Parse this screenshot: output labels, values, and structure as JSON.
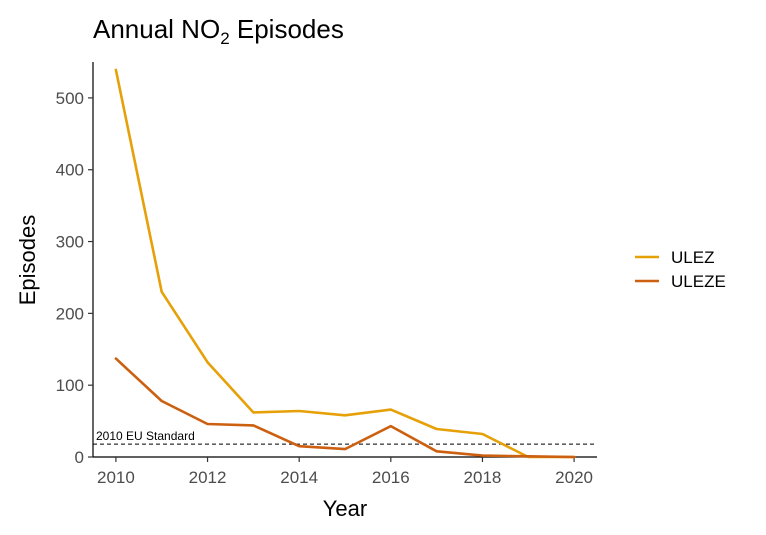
{
  "chart_data": {
    "type": "line",
    "title": "Annual NO",
    "title_subscript": "2",
    "title_suffix": " Episodes",
    "xlabel": "Year",
    "ylabel": "Episodes",
    "xlim": [
      2009.5,
      2020.5
    ],
    "ylim": [
      0,
      550
    ],
    "x_ticks": [
      2010,
      2012,
      2014,
      2016,
      2018,
      2020
    ],
    "y_ticks": [
      0,
      100,
      200,
      300,
      400,
      500
    ],
    "grid": false,
    "legend_position": "right",
    "series": [
      {
        "name": "ULEZ",
        "color": "#E6A008",
        "x": [
          2010,
          2011,
          2012,
          2013,
          2014,
          2015,
          2016,
          2017,
          2018,
          2019,
          2020
        ],
        "y": [
          539,
          230,
          132,
          62,
          64,
          58,
          66,
          39,
          32,
          0,
          0
        ]
      },
      {
        "name": "ULEZE",
        "color": "#CC6010",
        "x": [
          2010,
          2011,
          2012,
          2013,
          2014,
          2015,
          2016,
          2017,
          2018,
          2019,
          2020
        ],
        "y": [
          137,
          78,
          46,
          44,
          15,
          11,
          43,
          8,
          2,
          1,
          0
        ]
      }
    ],
    "reference_line": {
      "label": "2010 EU Standard",
      "y": 18,
      "style": "dashed"
    }
  }
}
